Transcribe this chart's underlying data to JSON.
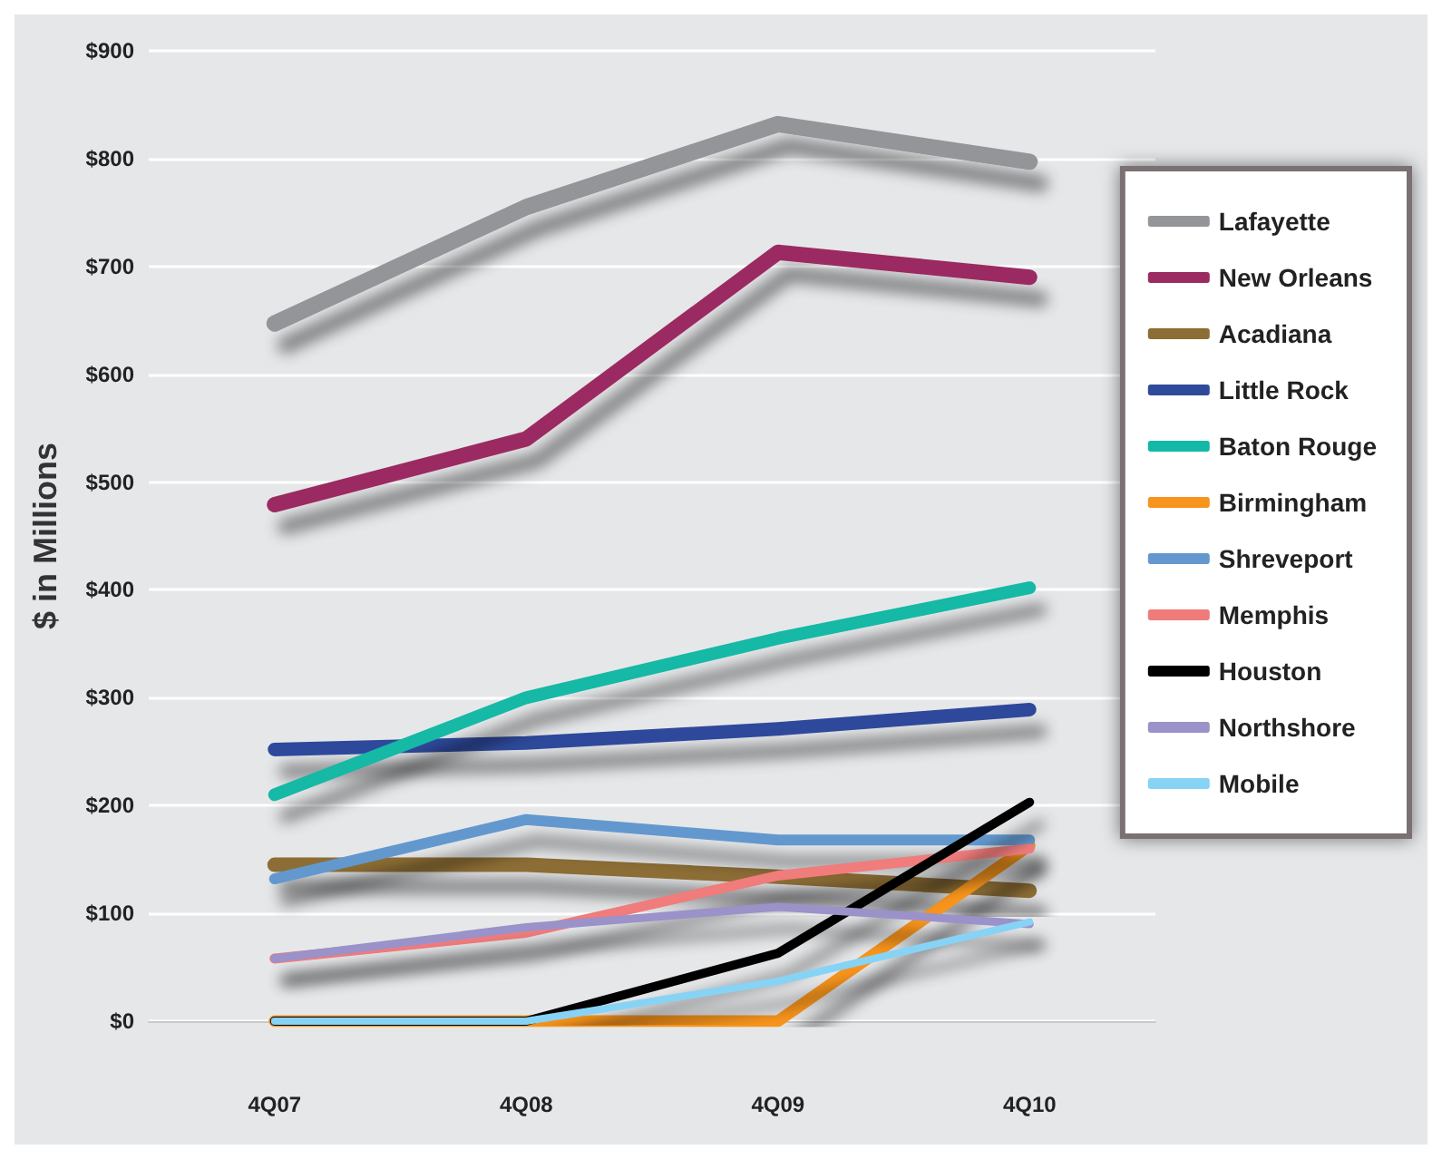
{
  "chart_data": {
    "type": "line",
    "ylabel": "$ in Millions",
    "categories": [
      "4Q07",
      "4Q08",
      "4Q09",
      "4Q10"
    ],
    "ylim": [
      0,
      900
    ],
    "yticks": [
      {
        "value": 0,
        "label": "$0"
      },
      {
        "value": 100,
        "label": "$100"
      },
      {
        "value": 200,
        "label": "$200"
      },
      {
        "value": 300,
        "label": "$300"
      },
      {
        "value": 400,
        "label": "$400"
      },
      {
        "value": 500,
        "label": "$500"
      },
      {
        "value": 600,
        "label": "$600"
      },
      {
        "value": 700,
        "label": "$700"
      },
      {
        "value": 800,
        "label": "$800"
      },
      {
        "value": 900,
        "label": "$900"
      }
    ],
    "grid": "y",
    "legend": "right",
    "marker": "none",
    "line_style": "solid",
    "series": [
      {
        "name": "Lafayette",
        "color": "#939598",
        "values": [
          647,
          755,
          832,
          797
        ]
      },
      {
        "name": "New Orleans",
        "color": "#9b2c62",
        "values": [
          479,
          540,
          713,
          690
        ]
      },
      {
        "name": "Acadiana",
        "color": "#8c6d35",
        "values": [
          145,
          145,
          134,
          121
        ]
      },
      {
        "name": "Little Rock",
        "color": "#2e4a9b",
        "values": [
          252,
          258,
          271,
          289
        ]
      },
      {
        "name": "Baton Rouge",
        "color": "#14b8a6",
        "values": [
          210,
          300,
          355,
          402
        ]
      },
      {
        "name": "Birmingham",
        "color": "#f7941d",
        "values": [
          0,
          0,
          0,
          163
        ]
      },
      {
        "name": "Shreveport",
        "color": "#6398cf",
        "values": [
          132,
          187,
          168,
          168
        ]
      },
      {
        "name": "Memphis",
        "color": "#f07b7b",
        "values": [
          58,
          82,
          135,
          160
        ]
      },
      {
        "name": "Houston",
        "color": "#000000",
        "values": [
          0,
          0,
          63,
          203
        ]
      },
      {
        "name": "Northshore",
        "color": "#9a92c9",
        "values": [
          58,
          87,
          106,
          90
        ]
      },
      {
        "name": "Mobile",
        "color": "#87d3f5",
        "values": [
          0,
          0,
          37,
          92
        ]
      }
    ]
  }
}
